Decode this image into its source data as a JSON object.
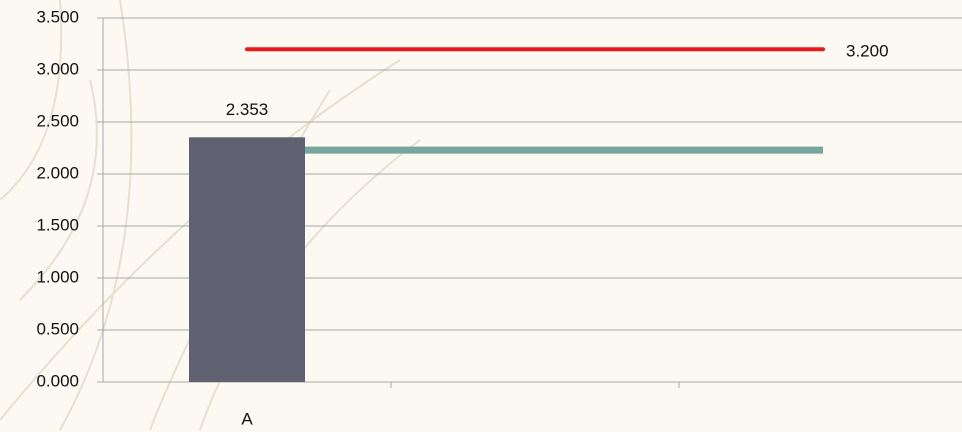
{
  "chart_data": {
    "type": "bar",
    "categories": [
      "A",
      null,
      null
    ],
    "series": [
      {
        "type": "bar",
        "color": "#5f6170",
        "values": [
          2.353,
          null,
          null
        ]
      },
      {
        "type": "line",
        "color": "#76a69c",
        "values": [
          2.23,
          2.23,
          2.23
        ]
      },
      {
        "type": "line",
        "color": "#e8191c",
        "values": [
          3.2,
          3.2,
          3.2
        ],
        "value_labels": [
          null,
          null,
          "3.200"
        ]
      }
    ],
    "ylim": [
      0,
      3.5
    ],
    "yticks": [
      {
        "value": 0,
        "label": "0.000"
      },
      {
        "value": 0.5,
        "label": "0.500"
      },
      {
        "value": 1,
        "label": "1.000"
      },
      {
        "value": 1.5,
        "label": "1.500"
      },
      {
        "value": 2,
        "label": "2.000"
      },
      {
        "value": 2.5,
        "label": "2.500"
      },
      {
        "value": 3,
        "label": "3.000"
      },
      {
        "value": 3.5,
        "label": "3.500"
      }
    ],
    "grid": true
  }
}
